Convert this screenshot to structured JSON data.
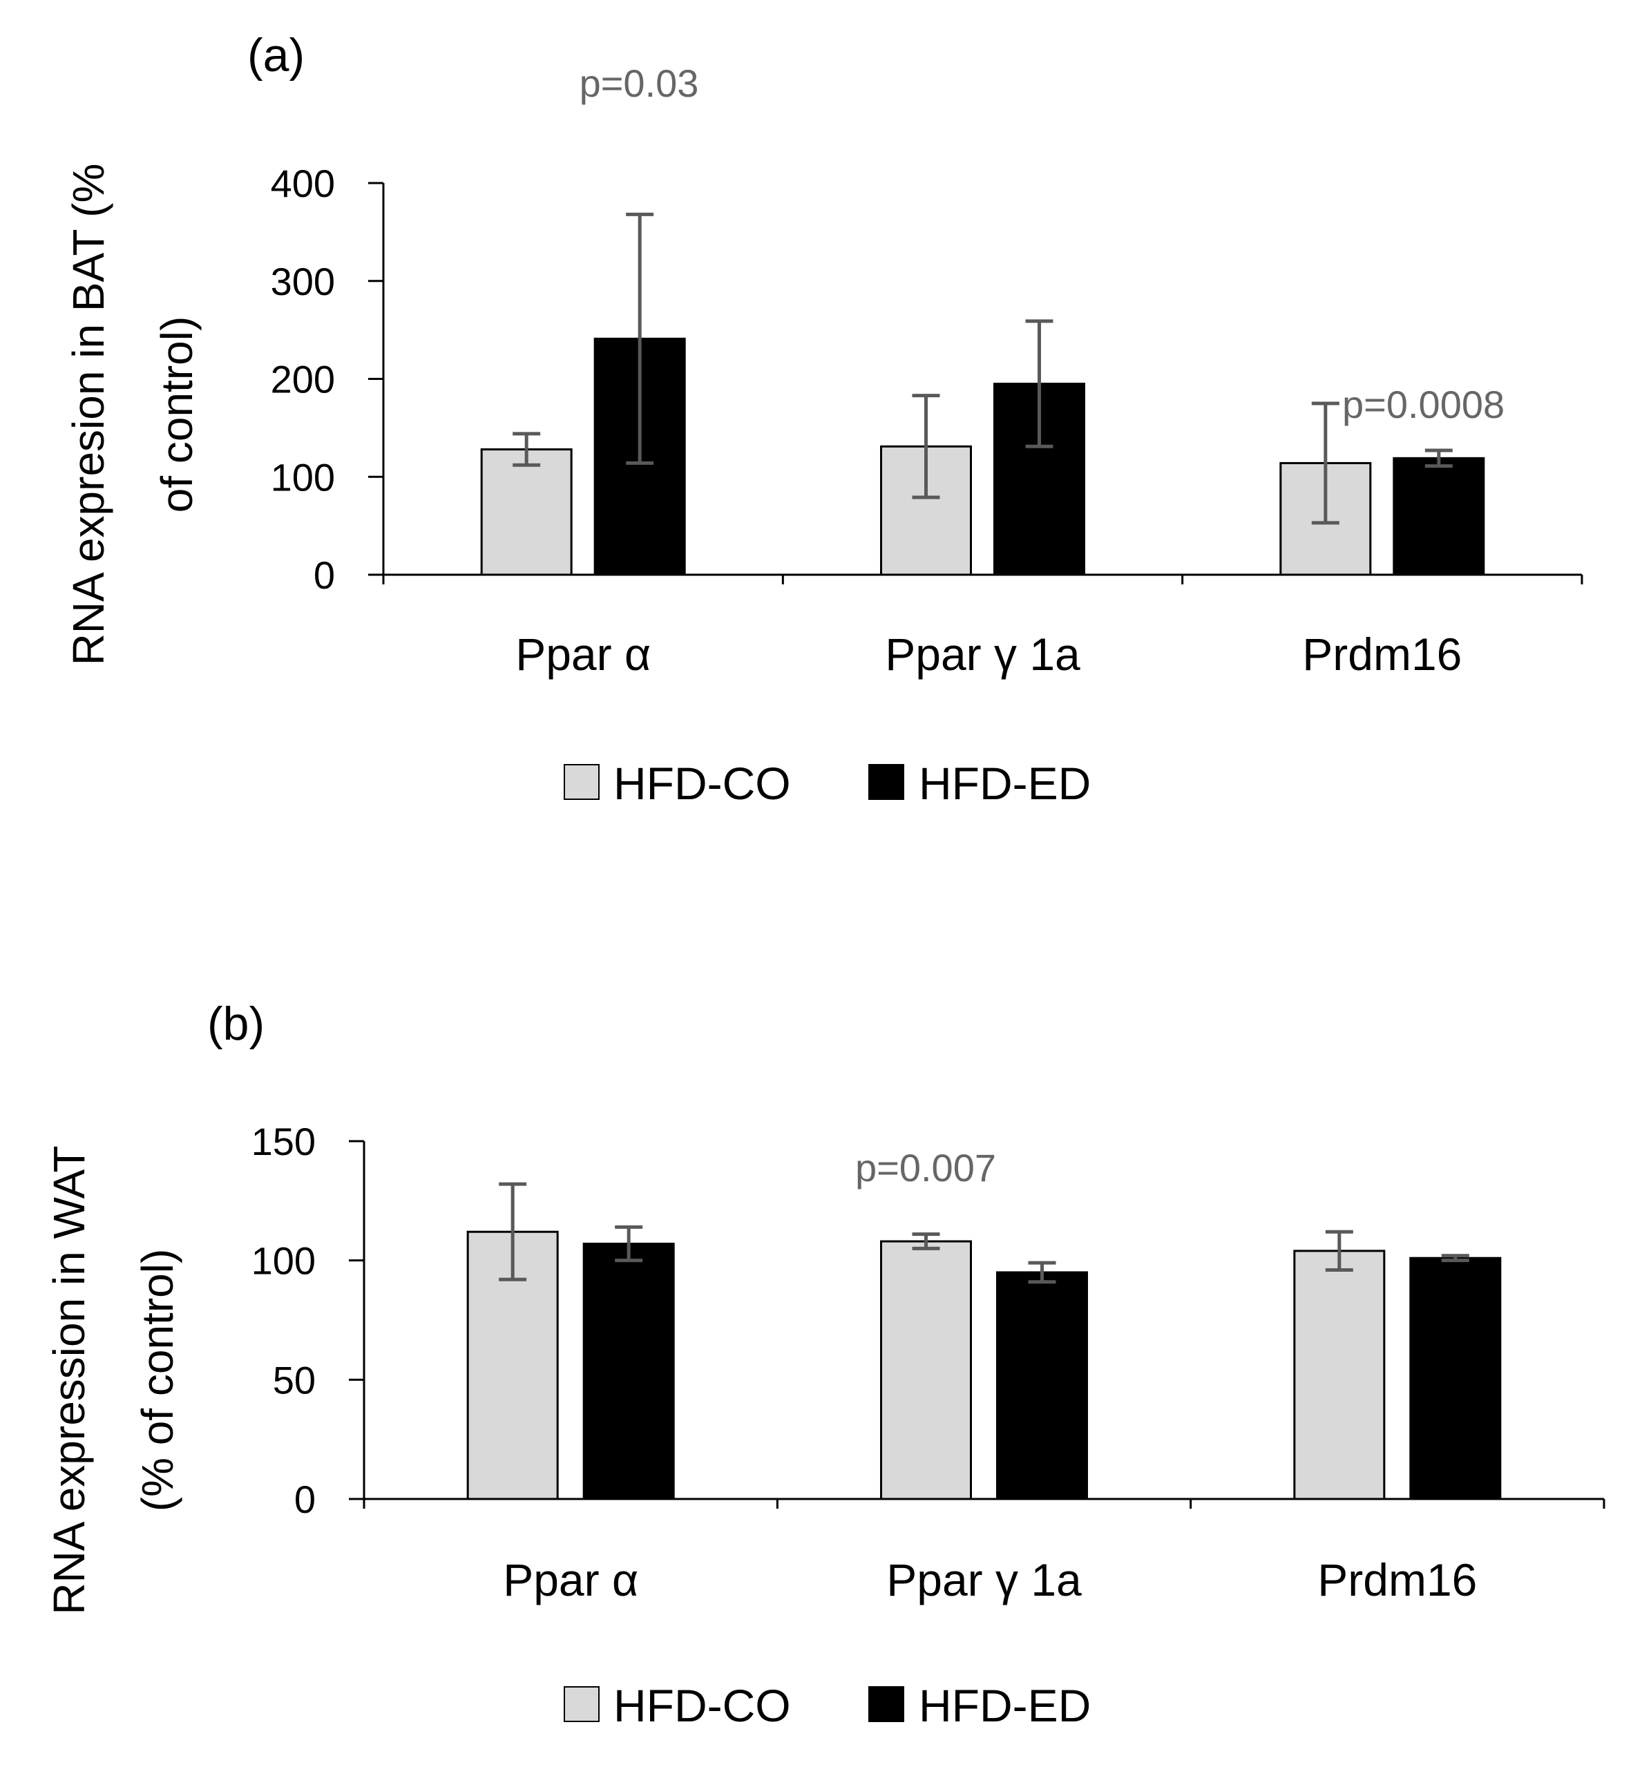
{
  "colors": {
    "hfd_co": "#d9d9d9",
    "hfd_ed": "#000000",
    "error_bar": "#595959",
    "annotation": "#666666"
  },
  "chart_data": [
    {
      "type": "bar",
      "panel_label": "(a)",
      "ylabel_line1": "RNA expresion in BAT (%",
      "ylabel_line2": "of control)",
      "categories": [
        "Ppar α",
        "Ppar γ 1a",
        "Prdm16"
      ],
      "ylim": [
        0,
        400
      ],
      "yticks": [
        0,
        100,
        200,
        300,
        400
      ],
      "series": [
        {
          "name": "HFD-CO",
          "values": [
            128,
            131,
            114
          ],
          "errors": [
            16,
            52,
            61
          ]
        },
        {
          "name": "HFD-ED",
          "values": [
            241,
            195,
            119
          ],
          "errors": [
            127,
            64,
            8
          ]
        }
      ],
      "annotations": [
        {
          "text": "p=0.03",
          "category": 0
        },
        {
          "text": "p=0.0008",
          "category": 2
        }
      ],
      "legend": [
        "HFD-CO",
        "HFD-ED"
      ]
    },
    {
      "type": "bar",
      "panel_label": "(b)",
      "ylabel_line1": "RNA expression in WAT",
      "ylabel_line2": "(% of control)",
      "categories": [
        "Ppar α",
        "Ppar γ 1a",
        "Prdm16"
      ],
      "ylim": [
        0,
        150
      ],
      "yticks": [
        0,
        50,
        100,
        150
      ],
      "series": [
        {
          "name": "HFD-CO",
          "values": [
            112,
            108,
            104
          ],
          "errors": [
            20,
            3,
            8
          ]
        },
        {
          "name": "HFD-ED",
          "values": [
            107,
            95,
            101
          ],
          "errors": [
            7,
            4,
            1
          ]
        }
      ],
      "annotations": [
        {
          "text": "p=0.007",
          "category": 1
        }
      ],
      "legend": [
        "HFD-CO",
        "HFD-ED"
      ]
    }
  ]
}
